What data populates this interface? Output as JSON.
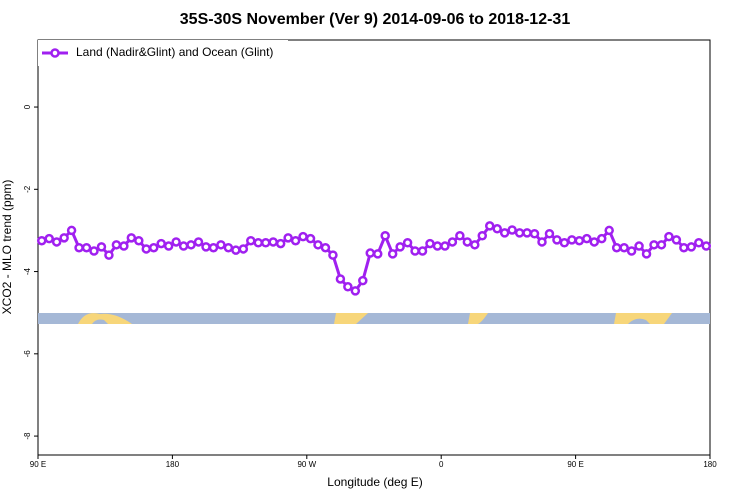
{
  "chart_data": {
    "type": "line",
    "title": "35S-30S November (Ver 9)   2014-09-06 to 2018-12-31",
    "xlabel": "Longitude (deg E)",
    "ylabel": "XCO2 - MLO trend (ppm)",
    "xlim": [
      90,
      540
    ],
    "ylim": [
      -8.46,
      1.63
    ],
    "xticks": [
      {
        "value": 90,
        "label": "90 E"
      },
      {
        "value": 180,
        "label": "180"
      },
      {
        "value": 270,
        "label": "90 W"
      },
      {
        "value": 360,
        "label": "0"
      },
      {
        "value": 450,
        "label": "90 E"
      },
      {
        "value": 540,
        "label": "180"
      }
    ],
    "yticks": [
      0,
      -2,
      -4,
      -6,
      -8
    ],
    "grid": false,
    "legend": "topleft",
    "x": [
      92.5,
      97.5,
      102.5,
      107.5,
      112.5,
      117.5,
      122.5,
      127.5,
      132.5,
      137.5,
      142.5,
      147.5,
      152.5,
      157.5,
      162.5,
      167.5,
      172.5,
      177.5,
      182.5,
      187.5,
      192.5,
      197.5,
      202.5,
      207.5,
      212.5,
      217.5,
      222.5,
      227.5,
      232.5,
      237.5,
      242.5,
      247.5,
      252.5,
      257.5,
      262.5,
      267.5,
      272.5,
      277.5,
      282.5,
      287.5,
      292.5,
      297.5,
      302.5,
      307.5,
      312.5,
      317.5,
      322.5,
      327.5,
      332.5,
      337.5,
      342.5,
      347.5,
      352.5,
      357.5,
      362.5,
      367.5,
      372.5,
      377.5,
      382.5,
      387.5,
      392.5,
      397.5,
      402.5,
      407.5,
      412.5,
      417.5,
      422.5,
      427.5,
      432.5,
      437.5,
      442.5,
      447.5,
      452.5,
      457.5,
      462.5,
      467.5,
      472.5,
      477.5,
      482.5,
      487.5,
      492.5,
      497.5,
      502.5,
      507.5,
      512.5,
      517.5,
      522.5,
      527.5,
      532.5,
      537.5
    ],
    "series": [
      {
        "name": "Land (Nadir&Glint) and Ocean (Glint)",
        "color": "#a020f0",
        "values": [
          -3.25,
          -3.2,
          -3.28,
          -3.18,
          -3.0,
          -3.42,
          -3.42,
          -3.5,
          -3.4,
          -3.6,
          -3.35,
          -3.38,
          -3.18,
          -3.25,
          -3.45,
          -3.42,
          -3.32,
          -3.38,
          -3.28,
          -3.38,
          -3.35,
          -3.28,
          -3.4,
          -3.42,
          -3.35,
          -3.42,
          -3.48,
          -3.45,
          -3.25,
          -3.3,
          -3.3,
          -3.28,
          -3.32,
          -3.18,
          -3.25,
          -3.15,
          -3.2,
          -3.35,
          -3.42,
          -3.6,
          -4.18,
          -4.37,
          -4.47,
          -4.22,
          -3.55,
          -3.57,
          -3.13,
          -3.57,
          -3.4,
          -3.3,
          -3.5,
          -3.5,
          -3.32,
          -3.38,
          -3.38,
          -3.28,
          -3.13,
          -3.28,
          -3.35,
          -3.13,
          -2.89,
          -2.96,
          -3.06,
          -2.99,
          -3.06,
          -3.06,
          -3.08,
          -3.28,
          -3.08,
          -3.23,
          -3.3,
          -3.23,
          -3.25,
          -3.2,
          -3.28,
          -3.2,
          -3.0,
          -3.42,
          -3.42,
          -3.5,
          -3.38,
          -3.57,
          -3.35,
          -3.35,
          -3.15,
          -3.23,
          -3.42,
          -3.4,
          -3.3,
          -3.38
        ]
      }
    ]
  }
}
